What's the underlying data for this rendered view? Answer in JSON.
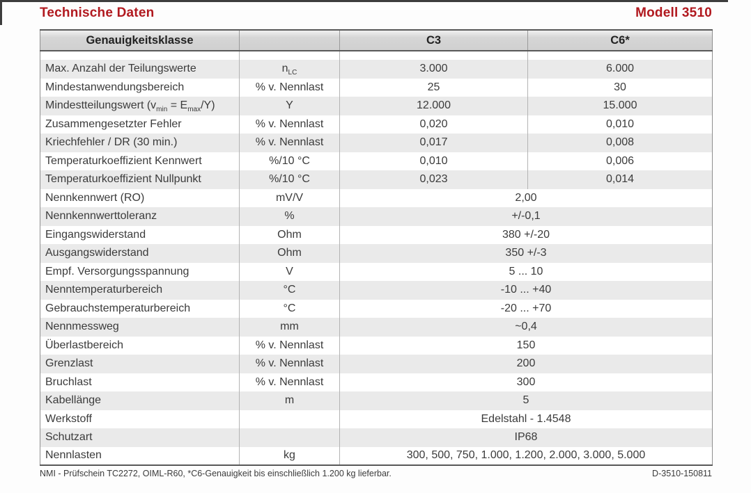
{
  "header": {
    "title": "Technische Daten",
    "model": "Modell 3510"
  },
  "colors": {
    "accent_red": "#b1191f",
    "row_alt_gray": "#eaeaea",
    "header_gray": "#d4d4d4",
    "text": "#3b3b3b"
  },
  "table": {
    "header": {
      "col1": "Genauigkeitsklasse",
      "col2": "",
      "col3": "C3",
      "col4": "C6*"
    },
    "rows": [
      {
        "label": [
          {
            "t": "Max. Anzahl der Teilungswerte"
          }
        ],
        "unit": [
          {
            "t": "n"
          },
          {
            "t": "LC",
            "sub": true
          }
        ],
        "c3": "3.000",
        "c6": "6.000"
      },
      {
        "label": [
          {
            "t": "Mindestanwendungsbereich"
          }
        ],
        "unit": [
          {
            "t": "% v. Nennlast"
          }
        ],
        "c3": "25",
        "c6": "30"
      },
      {
        "label": [
          {
            "t": "Mindestteilungswert (v"
          },
          {
            "t": "min",
            "sub": true
          },
          {
            "t": " = E"
          },
          {
            "t": "max",
            "sub": true
          },
          {
            "t": "/Y)"
          }
        ],
        "unit": [
          {
            "t": "Y"
          }
        ],
        "c3": "12.000",
        "c6": "15.000"
      },
      {
        "label": [
          {
            "t": "Zusammengesetzter Fehler"
          }
        ],
        "unit": [
          {
            "t": "% v. Nennlast"
          }
        ],
        "c3": "0,020",
        "c6": "0,010"
      },
      {
        "label": [
          {
            "t": "Kriechfehler / DR (30 min.)"
          }
        ],
        "unit": [
          {
            "t": "% v. Nennlast"
          }
        ],
        "c3": "0,017",
        "c6": "0,008"
      },
      {
        "label": [
          {
            "t": "Temperaturkoeffizient Kennwert"
          }
        ],
        "unit": [
          {
            "t": "%/10 °C"
          }
        ],
        "c3": "0,010",
        "c6": "0,006"
      },
      {
        "label": [
          {
            "t": "Temperaturkoeffizient Nullpunkt"
          }
        ],
        "unit": [
          {
            "t": "%/10 °C"
          }
        ],
        "c3": "0,023",
        "c6": "0,014"
      },
      {
        "label": [
          {
            "t": "Nennkennwert (RO)"
          }
        ],
        "unit": [
          {
            "t": "mV/V"
          }
        ],
        "merged": "2,00"
      },
      {
        "label": [
          {
            "t": "Nennkennwerttoleranz"
          }
        ],
        "unit": [
          {
            "t": "%"
          }
        ],
        "merged": "+/-0,1"
      },
      {
        "label": [
          {
            "t": "Eingangswiderstand"
          }
        ],
        "unit": [
          {
            "t": "Ohm"
          }
        ],
        "merged": "380 +/-20"
      },
      {
        "label": [
          {
            "t": "Ausgangswiderstand"
          }
        ],
        "unit": [
          {
            "t": "Ohm"
          }
        ],
        "merged": "350 +/-3"
      },
      {
        "label": [
          {
            "t": "Empf. Versorgungsspannung"
          }
        ],
        "unit": [
          {
            "t": "V"
          }
        ],
        "merged": "5 ... 10"
      },
      {
        "label": [
          {
            "t": "Nenntemperaturbereich"
          }
        ],
        "unit": [
          {
            "t": "°C"
          }
        ],
        "merged": "-10 ... +40"
      },
      {
        "label": [
          {
            "t": "Gebrauchstemperaturbereich"
          }
        ],
        "unit": [
          {
            "t": "°C"
          }
        ],
        "merged": "-20 ... +70"
      },
      {
        "label": [
          {
            "t": "Nennmessweg"
          }
        ],
        "unit": [
          {
            "t": "mm"
          }
        ],
        "merged": "~0,4"
      },
      {
        "label": [
          {
            "t": "Überlastbereich"
          }
        ],
        "unit": [
          {
            "t": "% v. Nennlast"
          }
        ],
        "merged": "150"
      },
      {
        "label": [
          {
            "t": "Grenzlast"
          }
        ],
        "unit": [
          {
            "t": "% v. Nennlast"
          }
        ],
        "merged": "200"
      },
      {
        "label": [
          {
            "t": "Bruchlast"
          }
        ],
        "unit": [
          {
            "t": "% v. Nennlast"
          }
        ],
        "merged": "300"
      },
      {
        "label": [
          {
            "t": "Kabellänge"
          }
        ],
        "unit": [
          {
            "t": "m"
          }
        ],
        "merged": "5"
      },
      {
        "label": [
          {
            "t": "Werkstoff"
          }
        ],
        "unit": [
          {
            "t": ""
          }
        ],
        "merged": "Edelstahl - 1.4548"
      },
      {
        "label": [
          {
            "t": "Schutzart"
          }
        ],
        "unit": [
          {
            "t": ""
          }
        ],
        "merged": "IP68"
      },
      {
        "label": [
          {
            "t": "Nennlasten"
          }
        ],
        "unit": [
          {
            "t": "kg"
          }
        ],
        "merged": "300, 500, 750, 1.000, 1.200, 2.000, 3.000, 5.000"
      }
    ]
  },
  "footer": {
    "note": "NMI - Prüfschein TC2272, OIML-R60, *C6-Genauigkeit bis einschließlich 1.200 kg lieferbar.",
    "doc_id": "D-3510-150811"
  }
}
